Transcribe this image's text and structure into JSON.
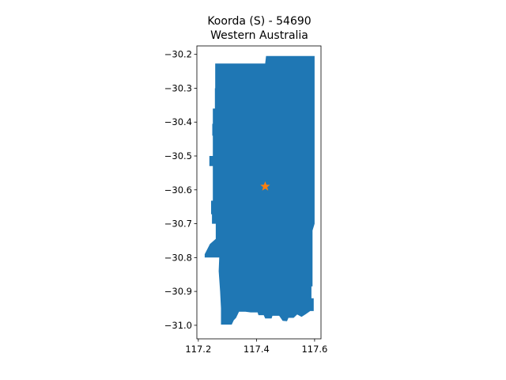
{
  "title": {
    "line1": "Koorda (S) - 54690",
    "line2": "Western Australia"
  },
  "chart_data": {
    "type": "map",
    "x_ticks": [
      117.2,
      117.4,
      117.6
    ],
    "x_tick_labels": [
      "117.2",
      "117.4",
      "117.6"
    ],
    "y_ticks": [
      -30.2,
      -30.3,
      -30.4,
      -30.5,
      -30.6,
      -30.7,
      -30.8,
      -30.9,
      -31.0
    ],
    "y_tick_labels": [
      "−30.2",
      "−30.3",
      "−30.4",
      "−30.5",
      "−30.6",
      "−30.7",
      "−30.8",
      "−30.9",
      "−31.0"
    ],
    "xlim": [
      117.195,
      117.622
    ],
    "ylim": [
      -31.04,
      -30.175
    ],
    "region_color": "#1f77b4",
    "marker": {
      "x": 117.43,
      "y": -30.59,
      "shape": "star",
      "color": "#ff7f0e"
    },
    "boundary": [
      [
        117.29,
        -30.227
      ],
      [
        117.43,
        -30.227
      ],
      [
        117.433,
        -30.205
      ],
      [
        117.6,
        -30.205
      ],
      [
        117.6,
        -30.7
      ],
      [
        117.593,
        -30.72
      ],
      [
        117.593,
        -30.885
      ],
      [
        117.589,
        -30.885
      ],
      [
        117.589,
        -30.92
      ],
      [
        117.597,
        -30.92
      ],
      [
        117.597,
        -30.958
      ],
      [
        117.585,
        -30.958
      ],
      [
        117.57,
        -30.967
      ],
      [
        117.555,
        -30.975
      ],
      [
        117.54,
        -30.968
      ],
      [
        117.528,
        -30.978
      ],
      [
        117.51,
        -30.978
      ],
      [
        117.505,
        -30.988
      ],
      [
        117.49,
        -30.987
      ],
      [
        117.478,
        -30.972
      ],
      [
        117.455,
        -30.972
      ],
      [
        117.452,
        -30.98
      ],
      [
        117.43,
        -30.98
      ],
      [
        117.425,
        -30.97
      ],
      [
        117.407,
        -30.97
      ],
      [
        117.404,
        -30.962
      ],
      [
        117.38,
        -30.962
      ],
      [
        117.362,
        -30.96
      ],
      [
        117.34,
        -30.96
      ],
      [
        117.33,
        -30.978
      ],
      [
        117.322,
        -30.985
      ],
      [
        117.315,
        -30.998
      ],
      [
        117.278,
        -30.998
      ],
      [
        117.278,
        -30.95
      ],
      [
        117.275,
        -30.9
      ],
      [
        117.27,
        -30.84
      ],
      [
        117.272,
        -30.8
      ],
      [
        117.222,
        -30.8
      ],
      [
        117.222,
        -30.79
      ],
      [
        117.24,
        -30.76
      ],
      [
        117.26,
        -30.745
      ],
      [
        117.26,
        -30.7
      ],
      [
        117.247,
        -30.7
      ],
      [
        117.247,
        -30.672
      ],
      [
        117.244,
        -30.672
      ],
      [
        117.244,
        -30.632
      ],
      [
        117.25,
        -30.632
      ],
      [
        117.25,
        -30.53
      ],
      [
        117.238,
        -30.53
      ],
      [
        117.238,
        -30.5
      ],
      [
        117.25,
        -30.5
      ],
      [
        117.25,
        -30.44
      ],
      [
        117.248,
        -30.44
      ],
      [
        117.248,
        -30.405
      ],
      [
        117.25,
        -30.405
      ],
      [
        117.25,
        -30.36
      ],
      [
        117.257,
        -30.36
      ],
      [
        117.257,
        -30.3
      ],
      [
        117.258,
        -30.3
      ],
      [
        117.258,
        -30.227
      ]
    ]
  }
}
